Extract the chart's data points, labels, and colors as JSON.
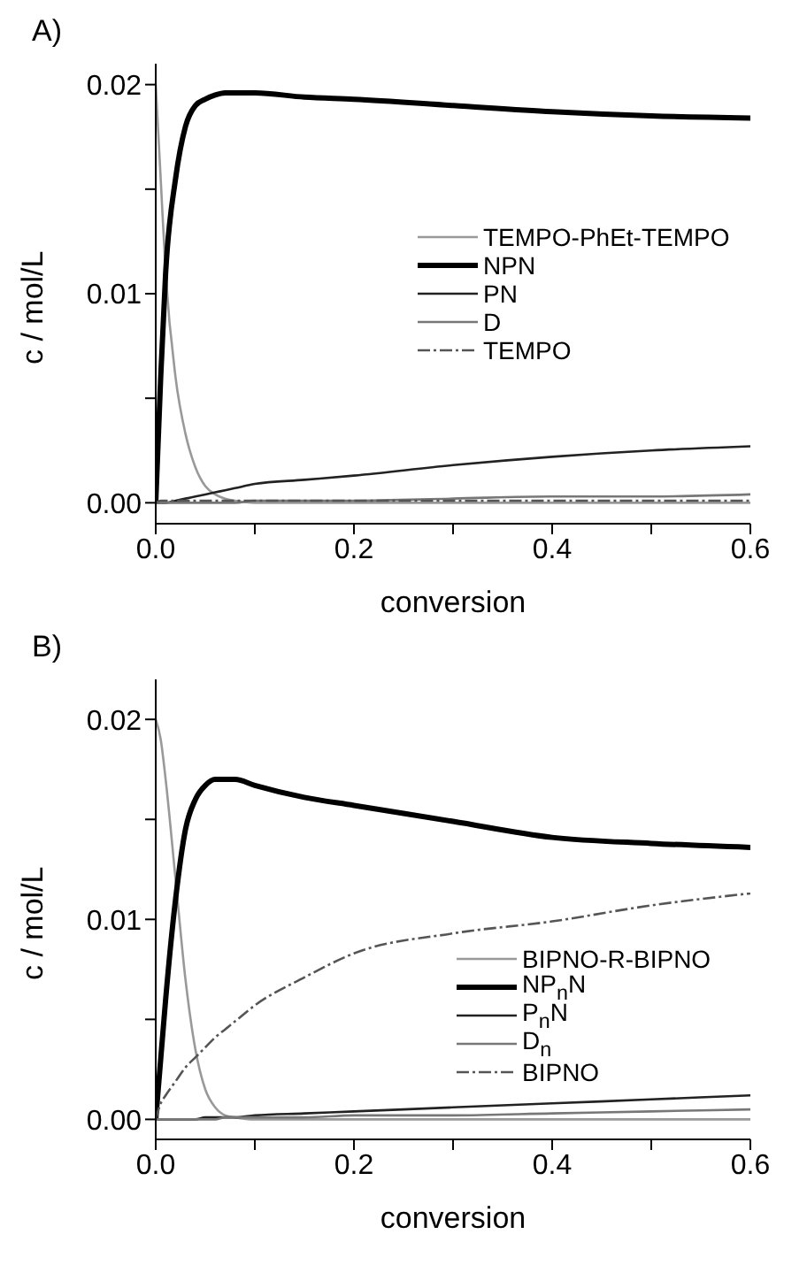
{
  "chart_data": [
    {
      "type": "line",
      "title": "A)",
      "xlabel": "conversion",
      "ylabel": "c / mol/L",
      "legend": "right",
      "grid": false,
      "x": [
        0,
        0.005,
        0.01,
        0.02,
        0.03,
        0.04,
        0.05,
        0.06,
        0.07,
        0.08,
        0.1,
        0.15,
        0.2,
        0.3,
        0.4,
        0.5,
        0.6
      ],
      "xlim": [
        0,
        0.6
      ],
      "xticks": [
        {
          "value": 0,
          "label": "0.0"
        },
        {
          "value": 0.1,
          "label": null
        },
        {
          "value": 0.2,
          "label": "0.2"
        },
        {
          "value": 0.3,
          "label": null
        },
        {
          "value": 0.4,
          "label": "0.4"
        },
        {
          "value": 0.5,
          "label": null
        },
        {
          "value": 0.6,
          "label": "0.6"
        }
      ],
      "ylim": [
        -0.001,
        0.021
      ],
      "yticks": [
        {
          "value": 0,
          "label": "0.00"
        },
        {
          "value": 0.005,
          "label": null
        },
        {
          "value": 0.01,
          "label": "0.01"
        },
        {
          "value": 0.015,
          "label": null
        },
        {
          "value": 0.02,
          "label": "0.02"
        }
      ],
      "series": [
        {
          "name": "TEMPO-PhEt-TEMPO",
          "color": "#999999",
          "values": [
            0.02,
            0.0155,
            0.011,
            0.006,
            0.0033,
            0.0017,
            0.0008,
            0.0004,
            0.0002,
            0.0001,
            0,
            0,
            0,
            0,
            0,
            0,
            0
          ]
        },
        {
          "name": "NPN",
          "color": "#000000",
          "values": [
            0,
            0.006,
            0.011,
            0.0155,
            0.018,
            0.019,
            0.0193,
            0.0195,
            0.0196,
            0.0196,
            0.0196,
            0.0194,
            0.0193,
            0.019,
            0.0187,
            0.0185,
            0.0184
          ]
        },
        {
          "name": "PN",
          "color": "#222222",
          "values": [
            0,
            0,
            0,
            0.0001,
            0.0002,
            0.0003,
            0.0004,
            0.0005,
            0.0006,
            0.0007,
            0.0009,
            0.0011,
            0.0013,
            0.0018,
            0.0022,
            0.0025,
            0.0027
          ]
        },
        {
          "name": "D",
          "color": "#777777",
          "values": [
            0,
            0,
            0,
            0,
            0,
            0,
            0,
            0,
            0,
            0,
            0.0001,
            0.0001,
            0.0001,
            0.0002,
            0.0003,
            0.0003,
            0.0004
          ]
        },
        {
          "name": "TEMPO",
          "color": "#555555",
          "line_style": "dashed",
          "values": [
            0,
            0.0001,
            0.0001,
            0.0001,
            0.0001,
            0.0001,
            0.0001,
            0.0001,
            0.0001,
            0.0001,
            0.0001,
            0.0001,
            0.0001,
            0.0001,
            0.0001,
            0.0001,
            0.0001
          ]
        }
      ]
    },
    {
      "type": "line",
      "title": "B)",
      "xlabel": "conversion",
      "ylabel": "c / mol/L",
      "legend": "bottom right",
      "grid": false,
      "x": [
        0,
        0.005,
        0.01,
        0.02,
        0.03,
        0.04,
        0.05,
        0.06,
        0.07,
        0.08,
        0.1,
        0.15,
        0.2,
        0.3,
        0.4,
        0.5,
        0.6
      ],
      "xlim": [
        0,
        0.6
      ],
      "xticks": [
        {
          "value": 0,
          "label": "0.0"
        },
        {
          "value": 0.1,
          "label": null
        },
        {
          "value": 0.2,
          "label": "0.2"
        },
        {
          "value": 0.3,
          "label": null
        },
        {
          "value": 0.4,
          "label": "0.4"
        },
        {
          "value": 0.5,
          "label": null
        },
        {
          "value": 0.6,
          "label": "0.6"
        }
      ],
      "ylim": [
        -0.001,
        0.022
      ],
      "yticks": [
        {
          "value": 0,
          "label": "0.00"
        },
        {
          "value": 0.005,
          "label": null
        },
        {
          "value": 0.01,
          "label": "0.01"
        },
        {
          "value": 0.015,
          "label": null
        },
        {
          "value": 0.02,
          "label": "0.02"
        }
      ],
      "series": [
        {
          "name": "BIPNO-R-BIPNO",
          "color": "#999999",
          "values": [
            0.02,
            0.019,
            0.017,
            0.012,
            0.007,
            0.0035,
            0.0015,
            0.0006,
            0.0002,
            0.0001,
            0,
            0,
            0,
            0,
            0,
            0,
            0
          ]
        },
        {
          "name": "NP$_{n}$N",
          "color": "#000000",
          "values": [
            0,
            0.003,
            0.006,
            0.011,
            0.0145,
            0.016,
            0.0167,
            0.017,
            0.017,
            0.017,
            0.0167,
            0.0161,
            0.0157,
            0.0149,
            0.0141,
            0.0138,
            0.0136
          ]
        },
        {
          "name": "P$_{n}$N",
          "color": "#222222",
          "values": [
            0,
            0,
            0,
            0,
            0,
            0,
            0.0001,
            0.0001,
            0.0001,
            0.0001,
            0.0002,
            0.0003,
            0.0004,
            0.0006,
            0.0008,
            0.001,
            0.0012
          ]
        },
        {
          "name": "D$_{n}$",
          "color": "#777777",
          "values": [
            0,
            0,
            0,
            0,
            0,
            0,
            0,
            0,
            0.0001,
            0.0001,
            0.0001,
            0.0001,
            0.0002,
            0.0002,
            0.0003,
            0.0004,
            0.0005
          ]
        },
        {
          "name": "BIPNO",
          "color": "#555555",
          "line_style": "dashed",
          "values": [
            0,
            0.0008,
            0.0012,
            0.0019,
            0.0026,
            0.0031,
            0.0036,
            0.0041,
            0.0045,
            0.0049,
            0.0057,
            0.0071,
            0.0083,
            0.0093,
            0.0099,
            0.0107,
            0.0113
          ]
        }
      ]
    }
  ]
}
